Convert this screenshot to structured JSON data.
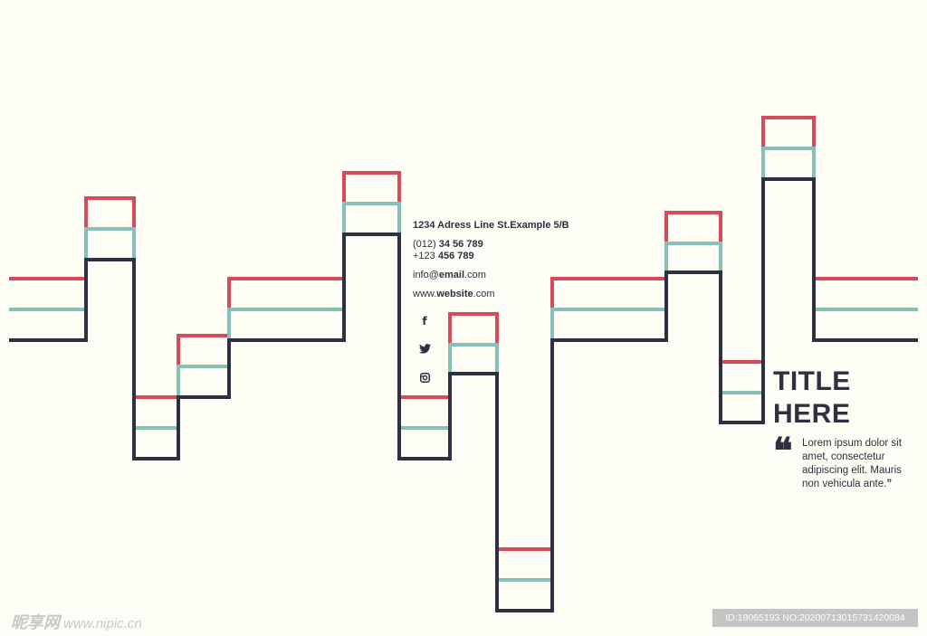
{
  "colors": {
    "red": "#d64b5a",
    "teal": "#85c1b9",
    "navy": "#2d3142",
    "background": "#fdfcf5"
  },
  "contact": {
    "address": "1234 Adress Line St.Example 5/B",
    "phone1_prefix": "(012) ",
    "phone1_number": "34 56 789",
    "phone2_prefix": "+123 ",
    "phone2_number": "456 789",
    "email_user": "info@",
    "email_domain": "email",
    "email_tld": ".com",
    "web_prefix": "www.",
    "web_name": "website",
    "web_tld": ".com"
  },
  "social": {
    "icons": [
      "facebook-icon",
      "twitter-icon",
      "instagram-icon"
    ],
    "facebook_glyph": "f"
  },
  "title": {
    "line1": "TITLE",
    "line2": "HERE"
  },
  "quote": {
    "mark": "❝",
    "text": "Lorem ipsum dolor sit amet, consectetur adipiscing elit. Mauris non vehicula ante.",
    "end_mark": "”"
  },
  "watermark": {
    "left_logo": "昵享网",
    "left_url": "www.nipic.cn",
    "right_text": "ID:18065193 NO:20200713015731420084"
  }
}
